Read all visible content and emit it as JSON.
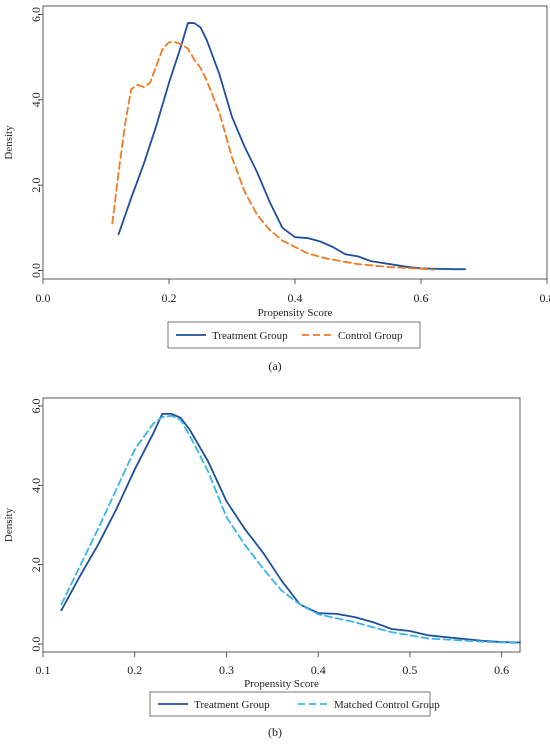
{
  "chart_data": [
    {
      "type": "line",
      "panel_label": "(a)",
      "xlabel": "Propensity Score",
      "ylabel": "Density",
      "xlim": [
        0.0,
        0.8
      ],
      "ylim": [
        -0.2,
        6.2
      ],
      "xticks": [
        0.0,
        0.2,
        0.4,
        0.6,
        0.8
      ],
      "xtick_labels": [
        "0.0",
        "0.2",
        "0.4",
        "0.6",
        "0.8"
      ],
      "yticks": [
        0.0,
        2.0,
        4.0,
        6.0
      ],
      "ytick_labels": [
        "0.0",
        "2.0",
        "4.0",
        "6.0"
      ],
      "grid": false,
      "legend_position": "bottom",
      "series": [
        {
          "name": "Treatment Group",
          "color": "#1f4e9a",
          "dash": "solid",
          "x": [
            0.12,
            0.14,
            0.16,
            0.18,
            0.2,
            0.22,
            0.23,
            0.24,
            0.25,
            0.26,
            0.28,
            0.3,
            0.32,
            0.34,
            0.36,
            0.38,
            0.4,
            0.42,
            0.44,
            0.46,
            0.48,
            0.5,
            0.52,
            0.55,
            0.58,
            0.6,
            0.62,
            0.65,
            0.67
          ],
          "y": [
            0.85,
            1.7,
            2.5,
            3.4,
            4.4,
            5.3,
            5.8,
            5.8,
            5.7,
            5.4,
            4.6,
            3.6,
            2.9,
            2.3,
            1.6,
            1.0,
            0.78,
            0.76,
            0.68,
            0.55,
            0.38,
            0.33,
            0.22,
            0.15,
            0.08,
            0.05,
            0.04,
            0.03,
            0.03
          ]
        },
        {
          "name": "Control Group",
          "color": "#f07a22",
          "dash": "dashed",
          "x": [
            0.11,
            0.12,
            0.13,
            0.14,
            0.15,
            0.16,
            0.17,
            0.18,
            0.19,
            0.2,
            0.21,
            0.22,
            0.23,
            0.24,
            0.25,
            0.26,
            0.28,
            0.3,
            0.32,
            0.34,
            0.36,
            0.38,
            0.4,
            0.42,
            0.45,
            0.48,
            0.5,
            0.55,
            0.6,
            0.62
          ],
          "y": [
            1.1,
            2.3,
            3.4,
            4.25,
            4.35,
            4.3,
            4.4,
            4.8,
            5.2,
            5.35,
            5.35,
            5.3,
            5.2,
            4.95,
            4.75,
            4.45,
            3.7,
            2.65,
            1.85,
            1.3,
            0.95,
            0.7,
            0.55,
            0.4,
            0.28,
            0.2,
            0.15,
            0.08,
            0.04,
            0.02
          ]
        }
      ]
    },
    {
      "type": "line",
      "panel_label": "(b)",
      "xlabel": "Propensity Score",
      "ylabel": "Density",
      "xlim": [
        0.1,
        0.62
      ],
      "ylim": [
        -0.2,
        6.2
      ],
      "xticks": [
        0.1,
        0.2,
        0.3,
        0.4,
        0.5,
        0.6
      ],
      "xtick_labels": [
        "0.1",
        "0.2",
        "0.3",
        "0.4",
        "0.5",
        "0.6"
      ],
      "yticks": [
        0.0,
        2.0,
        4.0,
        6.0
      ],
      "ytick_labels": [
        "0.0",
        "2.0",
        "4.0",
        "6.0"
      ],
      "grid": false,
      "legend_position": "bottom",
      "series": [
        {
          "name": "Treatment Group",
          "color": "#1f4e9a",
          "dash": "solid",
          "x": [
            0.12,
            0.14,
            0.16,
            0.18,
            0.2,
            0.22,
            0.23,
            0.24,
            0.25,
            0.26,
            0.28,
            0.3,
            0.32,
            0.34,
            0.36,
            0.38,
            0.4,
            0.42,
            0.44,
            0.46,
            0.48,
            0.5,
            0.52,
            0.55,
            0.58,
            0.6,
            0.62
          ],
          "y": [
            0.85,
            1.7,
            2.5,
            3.4,
            4.4,
            5.3,
            5.8,
            5.8,
            5.7,
            5.4,
            4.6,
            3.6,
            2.9,
            2.3,
            1.6,
            1.0,
            0.78,
            0.76,
            0.68,
            0.55,
            0.38,
            0.33,
            0.22,
            0.15,
            0.08,
            0.05,
            0.04
          ]
        },
        {
          "name": "Matched Control Group",
          "color": "#3ab4e8",
          "dash": "dashed",
          "x": [
            0.12,
            0.14,
            0.16,
            0.18,
            0.2,
            0.22,
            0.23,
            0.24,
            0.25,
            0.26,
            0.28,
            0.3,
            0.32,
            0.34,
            0.36,
            0.38,
            0.4,
            0.42,
            0.44,
            0.46,
            0.48,
            0.5,
            0.52,
            0.55,
            0.58,
            0.6,
            0.62
          ],
          "y": [
            1.0,
            1.95,
            2.9,
            3.9,
            4.9,
            5.55,
            5.72,
            5.75,
            5.65,
            5.25,
            4.35,
            3.2,
            2.5,
            1.9,
            1.35,
            1.0,
            0.75,
            0.65,
            0.55,
            0.42,
            0.3,
            0.22,
            0.14,
            0.1,
            0.06,
            0.04,
            0.03
          ]
        }
      ]
    }
  ]
}
